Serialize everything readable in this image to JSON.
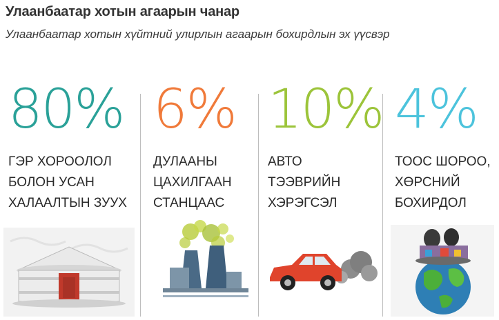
{
  "header": {
    "title": "Улаанбаатар хотын агаарын чанар",
    "subtitle": "Улаанбаатар хотын хүйтний улирлын агаарын бохирдлын эх үүсвэр"
  },
  "sources": [
    {
      "percent": "80%",
      "color": "#2aa198",
      "lines": [
        "ГЭР ХОРООЛОЛ",
        "БОЛОН УСАН",
        "ХАЛААЛТЫН ЗУУХ"
      ],
      "icon": "ger-icon"
    },
    {
      "percent": "6%",
      "color": "#f07a3a",
      "lines": [
        "ДУЛААНЫ",
        "ЦАХИЛГААН",
        "СТАНЦААС"
      ],
      "icon": "power-plant-icon"
    },
    {
      "percent": "10%",
      "color": "#9cc43a",
      "lines": [
        "АВТО",
        "ТЭЭВРИЙН",
        "ХЭРЭГСЭЛ"
      ],
      "icon": "car-smoke-icon"
    },
    {
      "percent": "4%",
      "color": "#4cc3dc",
      "lines": [
        "ТООС ШОРОО,",
        "ХӨРСНИЙ",
        "БОХИРДОЛ"
      ],
      "icon": "polluted-earth-icon"
    }
  ]
}
